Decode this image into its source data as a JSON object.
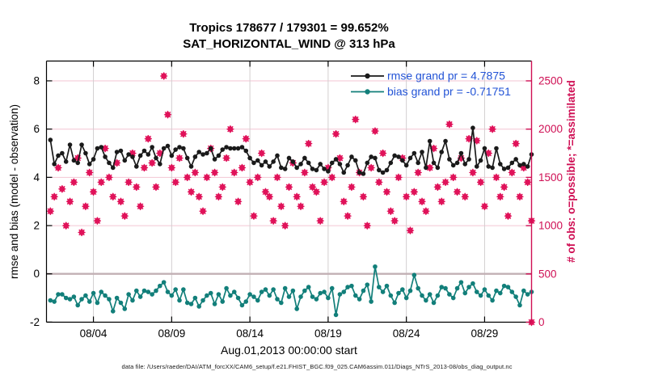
{
  "header": {
    "title_line1": "Tropics 178677 / 179301 = 99.652%",
    "title_line2": "SAT_HORIZONTAL_WIND @ 313 hPa"
  },
  "footer": {
    "datafile": "data file: /Users/raeder/DAI/ATM_forcXX/CAM6_setup/f.e21.FHIST_BGC.f09_025.CAM6assim.011/Diags_NTrS_2013-08/obs_diag_output.nc"
  },
  "colors": {
    "rmse_line": "#1a1a1a",
    "bias_line": "#127f7a",
    "obs_marker": "#e0135a",
    "right_axis": "#cf0f54",
    "legend_text": "#2253d6",
    "grid_pink": "#f3c6d3",
    "grid_gray": "#d2cfd0",
    "zero_line": "#c2b0b4"
  },
  "chart_data": {
    "type": "line",
    "title": "Tropics 178677 / 179301 = 99.652%",
    "subtitle": "SAT_HORIZONTAL_WIND @ 313 hPa",
    "xlabel": "Aug.01,2013 00:00:00 start",
    "x_ticks": [
      {
        "t": 3,
        "label": "08/04"
      },
      {
        "t": 8,
        "label": "08/09"
      },
      {
        "t": 13,
        "label": "08/14"
      },
      {
        "t": 18,
        "label": "08/19"
      },
      {
        "t": 23,
        "label": "08/24"
      },
      {
        "t": 28,
        "label": "08/29"
      }
    ],
    "x_range_days": [
      0,
      31
    ],
    "left_axis": {
      "label": "rmse and bias (model - observation)",
      "ticks": [
        -2,
        0,
        2,
        4,
        6,
        8
      ],
      "lim": [
        -2,
        8.83
      ]
    },
    "right_axis": {
      "label": "# of obs: o=possible; *=assimilated",
      "ticks": [
        0,
        500,
        1000,
        1500,
        2000,
        2500
      ],
      "lim": [
        0,
        2702
      ]
    },
    "legend": [
      {
        "label": "rmse grand pr = 4.7875",
        "series": "rmse",
        "color_key": "rmse_line"
      },
      {
        "label": "bias grand pr = -0.71751",
        "series": "bias",
        "color_key": "bias_line"
      }
    ],
    "grid": {
      "horizontal_at_right_ticks": true,
      "vertical_at_x_ticks": true,
      "zero_reference_line": true
    },
    "sampling": {
      "first_t_days": 0.25,
      "step_days": 0.25
    },
    "series": [
      {
        "name": "rmse",
        "axis": "left",
        "marker": "circle",
        "values": [
          5.55,
          4.55,
          4.9,
          5.0,
          4.65,
          5.35,
          4.7,
          4.6,
          5.35,
          5.0,
          4.55,
          4.75,
          5.2,
          5.25,
          4.85,
          4.6,
          4.4,
          5.05,
          5.1,
          4.7,
          4.95,
          4.85,
          4.45,
          4.9,
          5.1,
          4.95,
          5.25,
          4.8,
          4.55,
          5.2,
          5.3,
          4.9,
          5.15,
          5.25,
          5.2,
          4.8,
          4.45,
          4.85,
          5.05,
          4.95,
          5.0,
          5.2,
          4.75,
          4.9,
          5.15,
          5.25,
          5.2,
          5.2,
          5.2,
          5.25,
          5.1,
          4.8,
          4.6,
          4.7,
          4.5,
          4.65,
          4.45,
          4.65,
          4.9,
          4.4,
          4.35,
          4.8,
          4.65,
          4.4,
          4.55,
          4.8,
          4.6,
          4.35,
          4.3,
          4.55,
          4.35,
          4.25,
          4.6,
          4.75,
          4.55,
          4.2,
          4.5,
          4.85,
          4.7,
          4.2,
          4.15,
          4.6,
          4.85,
          4.8,
          4.3,
          4.2,
          4.3,
          4.6,
          4.9,
          4.85,
          4.7,
          4.5,
          4.8,
          5.0,
          4.6,
          5.05,
          4.4,
          5.5,
          4.6,
          4.4,
          5.05,
          5.5,
          4.75,
          4.5,
          4.6,
          5.0,
          4.55,
          4.75,
          6.05,
          4.45,
          4.7,
          5.2,
          4.45,
          4.4,
          5.2,
          4.55,
          4.35,
          4.4,
          4.6,
          4.75,
          4.5,
          4.55,
          4.45,
          4.95
        ]
      },
      {
        "name": "bias",
        "axis": "left",
        "marker": "circle",
        "values": [
          -1.1,
          -1.15,
          -0.85,
          -0.85,
          -1.0,
          -1.05,
          -0.95,
          -1.3,
          -1.05,
          -0.9,
          -1.15,
          -0.8,
          -1.2,
          -0.75,
          -0.9,
          -1.05,
          -1.55,
          -1.0,
          -1.2,
          -1.45,
          -0.85,
          -1.1,
          -0.7,
          -0.95,
          -0.7,
          -0.75,
          -0.85,
          -0.7,
          -0.5,
          -0.35,
          -0.75,
          -0.9,
          -0.65,
          -1.1,
          -0.65,
          -1.2,
          -1.25,
          -1.0,
          -1.35,
          -1.1,
          -0.9,
          -0.8,
          -1.25,
          -0.85,
          -1.15,
          -0.6,
          -0.9,
          -0.75,
          -1.0,
          -1.3,
          -1.15,
          -0.85,
          -0.95,
          -1.1,
          -0.75,
          -0.65,
          -0.9,
          -0.65,
          -1.05,
          -1.2,
          -0.6,
          -0.95,
          -0.7,
          -1.45,
          -0.95,
          -0.7,
          -0.55,
          -0.95,
          -1.05,
          -0.8,
          -0.75,
          -1.0,
          -0.6,
          -1.7,
          -0.85,
          -0.75,
          -0.55,
          -0.5,
          -0.9,
          -1.05,
          -0.7,
          -0.45,
          -1.15,
          0.3,
          -0.55,
          -0.75,
          -0.5,
          -0.9,
          -1.2,
          -0.8,
          -0.65,
          -1.0,
          -0.7,
          -0.05,
          -0.6,
          -0.9,
          -1.1,
          -0.85,
          -1.2,
          -0.9,
          -0.55,
          -0.6,
          -0.85,
          -1.0,
          -0.6,
          -0.35,
          -0.8,
          -0.55,
          -0.4,
          -0.75,
          -0.9,
          -0.65,
          -0.9,
          -1.1,
          -0.7,
          -0.8,
          -0.5,
          -0.55,
          -0.75,
          -0.95,
          -1.3,
          -0.7,
          -0.85,
          -0.75
        ]
      },
      {
        "name": "obs_count (o=possible, *=assimilated, overlapping)",
        "axis": "right",
        "marker": "o_star",
        "values": [
          1150,
          1300,
          1600,
          1380,
          1000,
          1250,
          1450,
          1700,
          930,
          1200,
          1550,
          1350,
          1050,
          1450,
          1800,
          1500,
          1300,
          1650,
          1250,
          1100,
          1450,
          1750,
          1400,
          1200,
          1600,
          1900,
          1650,
          1400,
          1750,
          2550,
          2150,
          1600,
          1450,
          1700,
          1950,
          1500,
          1350,
          1550,
          1300,
          1150,
          1500,
          1800,
          1550,
          1300,
          1400,
          1700,
          2000,
          1550,
          1250,
          1600,
          1900,
          1450,
          1100,
          1500,
          1750,
          1350,
          1300,
          1050,
          1500,
          1200,
          1000,
          1400,
          1650,
          1300,
          1200,
          1550,
          1850,
          1400,
          1350,
          1050,
          1450,
          1600,
          1500,
          1950,
          1700,
          1250,
          1100,
          1400,
          2100,
          1550,
          1300,
          1000,
          1600,
          1980,
          1450,
          1750,
          1350,
          1150,
          1050,
          1500,
          1700,
          1300,
          950,
          1350,
          1550,
          1250,
          1150,
          1600,
          1800,
          1400,
          1250,
          1450,
          2050,
          1500,
          1350,
          1700,
          1300,
          1900,
          1550,
          1880,
          1450,
          1200,
          1750,
          2000,
          1500,
          1300,
          1400,
          1100,
          1550,
          1850,
          1300,
          1600,
          1450,
          1050
        ]
      }
    ],
    "extra_points": [
      {
        "series": "obs_count",
        "t_days": 31.0,
        "value": 0
      }
    ]
  }
}
